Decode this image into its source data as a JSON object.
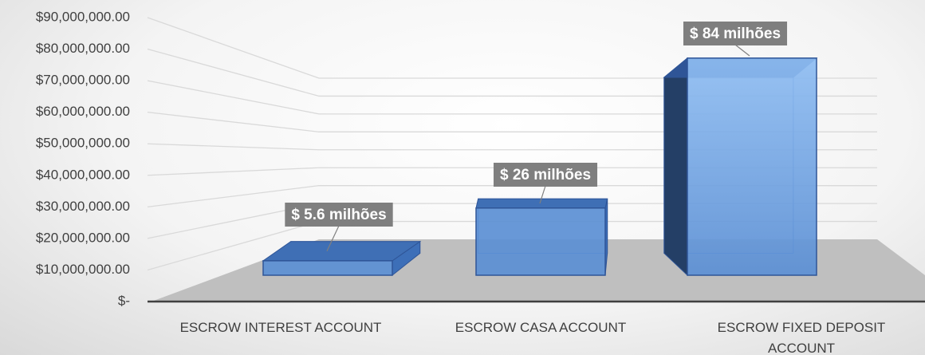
{
  "chart_data": {
    "type": "bar3d",
    "categories": [
      "ESCROW INTEREST ACCOUNT",
      "ESCROW CASA ACCOUNT",
      "ESCROW FIXED DEPOSIT ACCOUNT"
    ],
    "values": [
      5600000,
      26000000,
      84000000
    ],
    "value_labels": [
      "$ 5.6 milhões",
      "$ 26 milhões",
      "$ 84 milhões"
    ],
    "color": "#5b8fd4",
    "ylim": [
      0,
      90000000
    ],
    "yticks": [
      {
        "value": 0,
        "label": "$-"
      },
      {
        "value": 10000000,
        "label": "$10,000,000.00"
      },
      {
        "value": 20000000,
        "label": "$20,000,000.00"
      },
      {
        "value": 30000000,
        "label": "$30,000,000.00"
      },
      {
        "value": 40000000,
        "label": "$40,000,000.00"
      },
      {
        "value": 50000000,
        "label": "$50,000,000.00"
      },
      {
        "value": 60000000,
        "label": "$60,000,000.00"
      },
      {
        "value": 70000000,
        "label": "$70,000,000.00"
      },
      {
        "value": 80000000,
        "label": "$80,000,000.00"
      },
      {
        "value": 90000000,
        "label": "$90,000,000.00"
      }
    ],
    "grid": true
  }
}
